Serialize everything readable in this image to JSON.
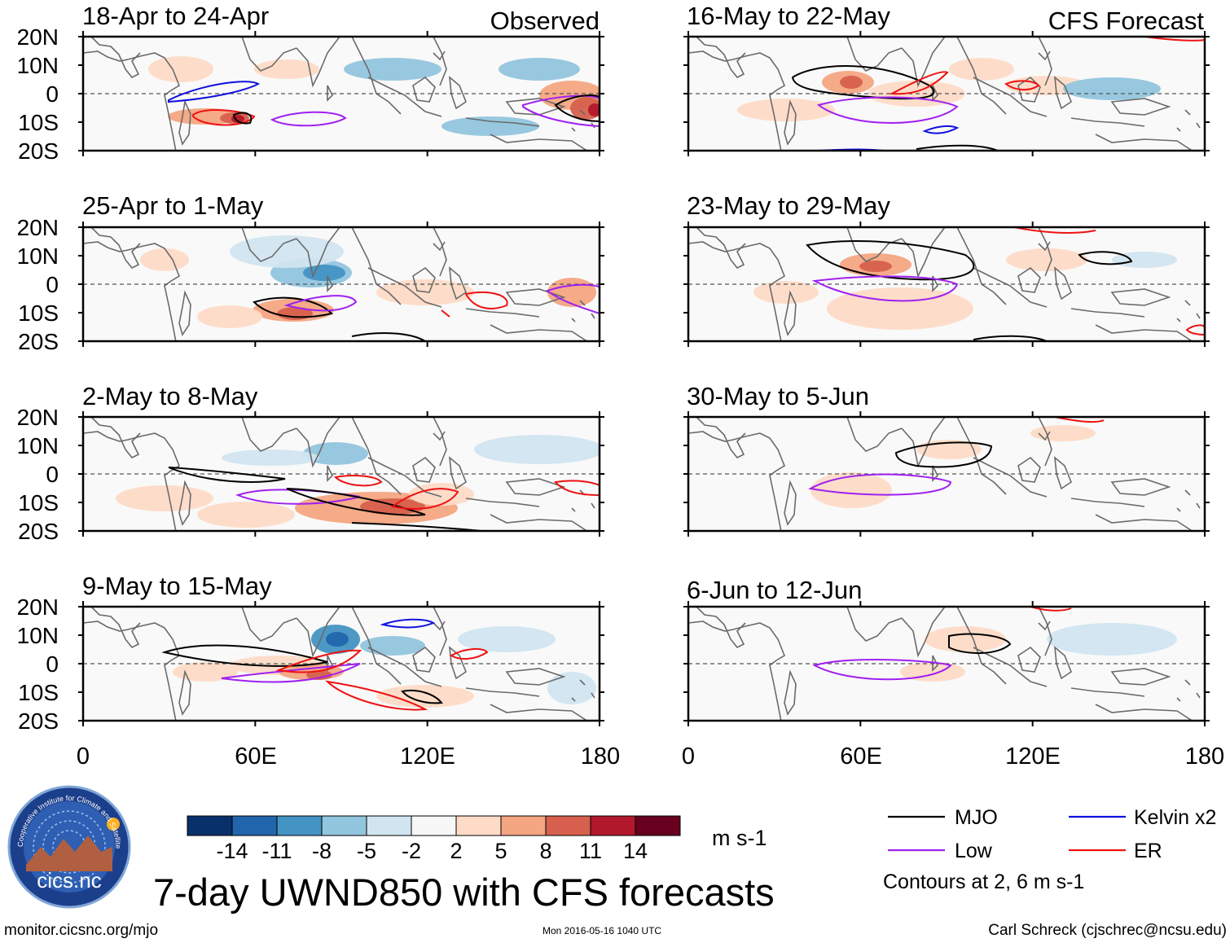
{
  "figure": {
    "title": "7-day UWND850 with CFS forecasts",
    "units": "m s-1",
    "contour_note": "Contours at 2, 6 m s-1",
    "footer_left": "monitor.cicsnc.org/mjo",
    "footer_center": "Mon 2016-05-16 1040 UTC",
    "footer_right": "Carl Schreck (cjschrec@ncsu.edu)"
  },
  "columns": {
    "observed_label": "Observed",
    "forecast_label": "CFS Forecast"
  },
  "latitude_labels": [
    "20N",
    "10N",
    "0",
    "10S",
    "20S"
  ],
  "longitude_labels": [
    "0",
    "60E",
    "120E",
    "180"
  ],
  "panels": {
    "observed": [
      {
        "title": "18-Apr to 24-Apr"
      },
      {
        "title": "25-Apr to 1-May"
      },
      {
        "title": "2-May to 8-May"
      },
      {
        "title": "9-May to 15-May"
      }
    ],
    "forecast": [
      {
        "title": "16-May to 22-May"
      },
      {
        "title": "23-May to 29-May"
      },
      {
        "title": "30-May to 5-Jun"
      },
      {
        "title": "6-Jun to 12-Jun"
      }
    ]
  },
  "colorbar": {
    "labels": [
      "-14",
      "-11",
      "-8",
      "-5",
      "-2",
      "2",
      "5",
      "8",
      "11",
      "14"
    ],
    "colors": [
      "#08306b",
      "#2166ac",
      "#4393c3",
      "#92c5de",
      "#d1e5f0",
      "#f7f7f7",
      "#fddbc7",
      "#f4a582",
      "#d6604d",
      "#b2182b",
      "#67001f"
    ]
  },
  "legend": [
    {
      "label": "MJO",
      "color": "#000000"
    },
    {
      "label": "Kelvin x2",
      "color": "#1010e0"
    },
    {
      "label": "Low",
      "color": "#a020f0"
    },
    {
      "label": "ER",
      "color": "#ee1111"
    }
  ],
  "logo": {
    "text": "cics.nc",
    "ring_text": "Cooperative Institute for Climate and Satellites"
  }
}
